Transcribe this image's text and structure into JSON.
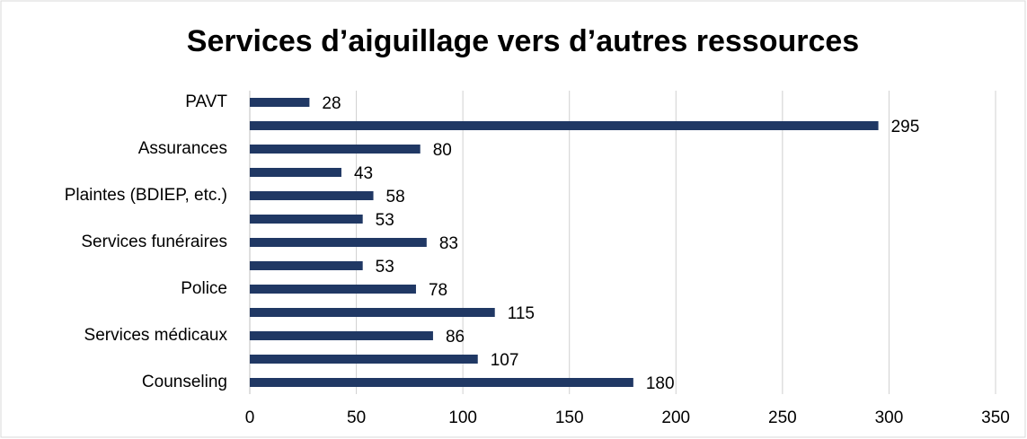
{
  "chart_data": {
    "type": "bar",
    "orientation": "horizontal",
    "title": "Services d’aiguillage vers d’autres ressources",
    "categories": [
      "PAVT",
      null,
      "Assurances",
      null,
      "Plaintes (BDIEP, etc.)",
      null,
      "Services funéraires",
      null,
      "Police",
      null,
      "Services médicaux",
      null,
      "Counseling"
    ],
    "values": [
      28,
      295,
      80,
      43,
      58,
      53,
      83,
      53,
      78,
      115,
      86,
      107,
      180
    ],
    "color": "#203864",
    "xlim": [
      0,
      350
    ],
    "xticks": [
      0,
      50,
      100,
      150,
      200,
      250,
      300,
      350
    ],
    "grid": true
  }
}
